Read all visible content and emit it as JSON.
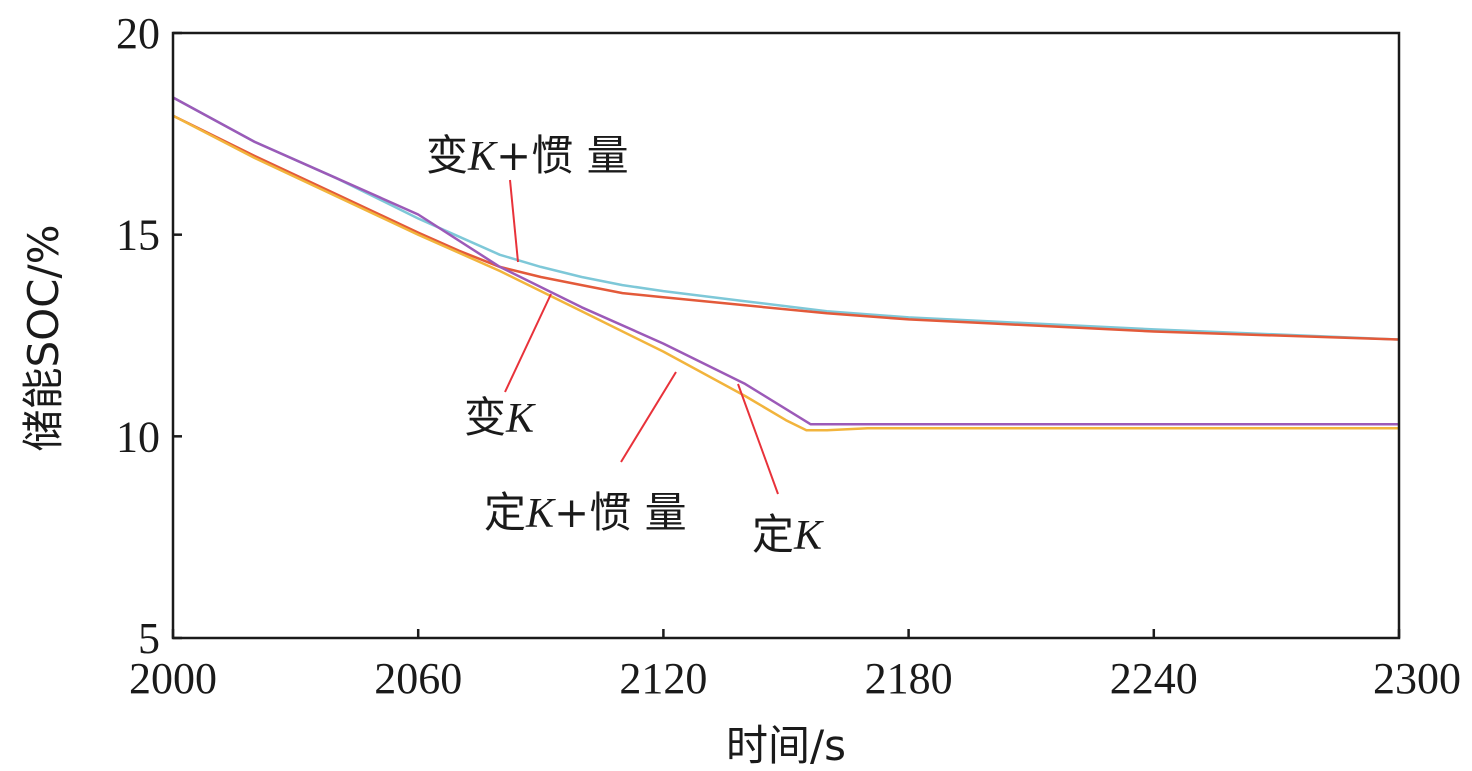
{
  "chart_data": {
    "type": "line",
    "xlabel": "时间/s",
    "ylabel": "储能SOC/%",
    "xlim": [
      2000,
      2300
    ],
    "ylim": [
      5,
      20
    ],
    "xticks": [
      2000,
      2060,
      2120,
      2180,
      2240,
      2300
    ],
    "yticks": [
      5,
      10,
      15,
      20
    ],
    "grid": false,
    "series": [
      {
        "name": "变K+惯量",
        "color": "#7ec8d8",
        "x": [
          2000,
          2020,
          2040,
          2060,
          2070,
          2080,
          2090,
          2100,
          2110,
          2120,
          2140,
          2160,
          2180,
          2200,
          2240,
          2300
        ],
        "y": [
          18.4,
          17.3,
          16.4,
          15.4,
          14.95,
          14.5,
          14.2,
          13.95,
          13.75,
          13.6,
          13.35,
          13.1,
          12.95,
          12.85,
          12.65,
          12.4
        ]
      },
      {
        "name": "变K",
        "color": "#e35a3a",
        "x": [
          2000,
          2020,
          2040,
          2060,
          2070,
          2080,
          2090,
          2100,
          2110,
          2120,
          2140,
          2160,
          2180,
          2200,
          2240,
          2300
        ],
        "y": [
          17.95,
          16.95,
          16.0,
          15.05,
          14.6,
          14.2,
          13.95,
          13.75,
          13.55,
          13.45,
          13.25,
          13.05,
          12.9,
          12.8,
          12.6,
          12.4
        ]
      },
      {
        "name": "定K",
        "color": "#9c5ab8",
        "x": [
          2000,
          2020,
          2040,
          2060,
          2080,
          2100,
          2120,
          2140,
          2156,
          2160,
          2200,
          2300
        ],
        "y": [
          18.4,
          17.3,
          16.4,
          15.5,
          14.2,
          13.2,
          12.3,
          11.3,
          10.3,
          10.3,
          10.3,
          10.3
        ]
      },
      {
        "name": "定K+惯量",
        "color": "#f2b43c",
        "x": [
          2000,
          2020,
          2040,
          2060,
          2080,
          2100,
          2120,
          2140,
          2150,
          2155,
          2160,
          2170,
          2200,
          2300
        ],
        "y": [
          17.95,
          16.9,
          15.95,
          15.0,
          14.1,
          13.1,
          12.1,
          11.0,
          10.4,
          10.15,
          10.15,
          10.2,
          10.2,
          10.2
        ]
      }
    ],
    "annotations": [
      {
        "base": "变",
        "k": "K",
        "suffix": "+惯 量"
      },
      {
        "base": "变",
        "k": "K",
        "suffix": ""
      },
      {
        "base": "定",
        "k": "K",
        "suffix": "+惯 量"
      },
      {
        "base": "定",
        "k": "K",
        "suffix": ""
      }
    ]
  }
}
